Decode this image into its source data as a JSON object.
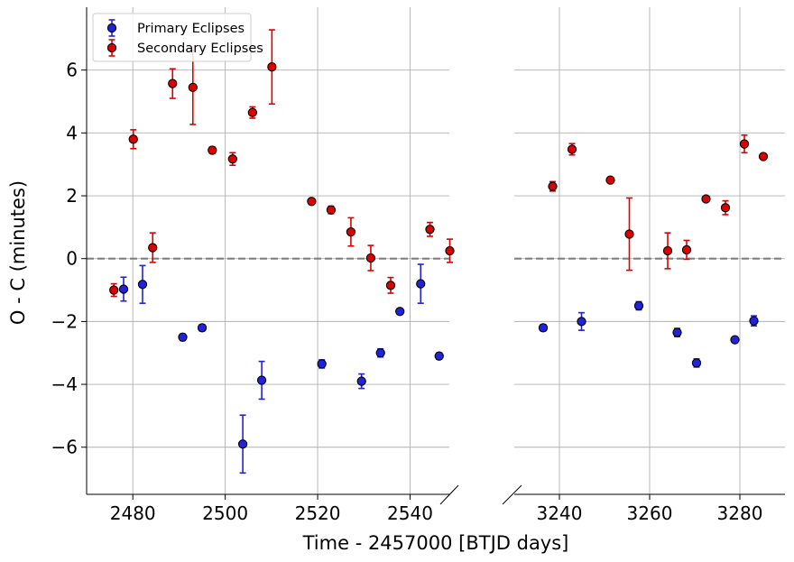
{
  "chart_data": {
    "type": "scatter",
    "title": "",
    "xlabel": "Time - 2457000 [BTJD days]",
    "ylabel": "O - C (minutes)",
    "grid": true,
    "legend_position": "top-left",
    "reference_line": {
      "y": 0,
      "style": "dashed",
      "color": "#808080"
    },
    "ylim": [
      -7.5,
      8.0
    ],
    "yticks": [
      -6,
      -4,
      -2,
      0,
      2,
      4,
      6
    ],
    "ytick_labels": [
      "−6",
      "−4",
      "−2",
      "0",
      "2",
      "4",
      "6"
    ],
    "panels": [
      {
        "name": "left",
        "xlim": [
          2470,
          2548.5
        ],
        "xticks": [
          2480,
          2500,
          2520,
          2540
        ],
        "xtick_labels": [
          "2480",
          "2500",
          "2520",
          "2540"
        ]
      },
      {
        "name": "right",
        "xlim": [
          3230,
          3290
        ],
        "xticks": [
          3240,
          3260,
          3280
        ],
        "xtick_labels": [
          "3240",
          "3260",
          "3280"
        ]
      }
    ],
    "series": [
      {
        "name": "Primary Eclipses",
        "color": "#2222dd",
        "points": [
          {
            "x": 2478.0,
            "y": -0.97,
            "err": 0.38
          },
          {
            "x": 2482.1,
            "y": -0.82,
            "err": 0.6
          },
          {
            "x": 2490.8,
            "y": -2.5,
            "err": 0.1
          },
          {
            "x": 2495.0,
            "y": -2.2,
            "err": 0.1
          },
          {
            "x": 2503.8,
            "y": -5.9,
            "err": 0.92
          },
          {
            "x": 2507.9,
            "y": -3.87,
            "err": 0.6
          },
          {
            "x": 2520.9,
            "y": -3.35,
            "err": 0.13
          },
          {
            "x": 2529.5,
            "y": -3.9,
            "err": 0.23
          },
          {
            "x": 2533.6,
            "y": -3.0,
            "err": 0.13
          },
          {
            "x": 2537.8,
            "y": -1.68,
            "err": 0.0
          },
          {
            "x": 2542.3,
            "y": -0.8,
            "err": 0.62
          },
          {
            "x": 2546.3,
            "y": -3.1,
            "err": 0.1
          },
          {
            "x": 3236.4,
            "y": -2.2,
            "err": 0.1
          },
          {
            "x": 3244.9,
            "y": -2.0,
            "err": 0.28
          },
          {
            "x": 3257.6,
            "y": -1.5,
            "err": 0.13
          },
          {
            "x": 3266.1,
            "y": -2.35,
            "err": 0.13
          },
          {
            "x": 3270.4,
            "y": -3.32,
            "err": 0.13
          },
          {
            "x": 3278.9,
            "y": -2.58,
            "err": 0.05
          },
          {
            "x": 3283.1,
            "y": -1.98,
            "err": 0.16
          }
        ]
      },
      {
        "name": "Secondary Eclipses",
        "color": "#dd0000",
        "points": [
          {
            "x": 2475.9,
            "y": -1.0,
            "err": 0.2
          },
          {
            "x": 2480.1,
            "y": 3.8,
            "err": 0.3
          },
          {
            "x": 2484.3,
            "y": 0.35,
            "err": 0.47
          },
          {
            "x": 2488.6,
            "y": 5.57,
            "err": 0.47
          },
          {
            "x": 2493.0,
            "y": 5.45,
            "err": 1.18
          },
          {
            "x": 2497.2,
            "y": 3.45,
            "err": 0.1
          },
          {
            "x": 2501.6,
            "y": 3.17,
            "err": 0.2
          },
          {
            "x": 2505.9,
            "y": 4.65,
            "err": 0.18
          },
          {
            "x": 2510.1,
            "y": 6.1,
            "err": 1.18
          },
          {
            "x": 2518.7,
            "y": 1.82,
            "err": 0.05
          },
          {
            "x": 2522.9,
            "y": 1.55,
            "err": 0.12
          },
          {
            "x": 2527.2,
            "y": 0.85,
            "err": 0.45
          },
          {
            "x": 2531.5,
            "y": 0.02,
            "err": 0.4
          },
          {
            "x": 2535.8,
            "y": -0.85,
            "err": 0.25
          },
          {
            "x": 2544.3,
            "y": 0.93,
            "err": 0.22
          },
          {
            "x": 2548.6,
            "y": 0.25,
            "err": 0.37
          },
          {
            "x": 3238.5,
            "y": 2.3,
            "err": 0.15
          },
          {
            "x": 3242.8,
            "y": 3.48,
            "err": 0.18
          },
          {
            "x": 3251.3,
            "y": 2.5,
            "err": 0.05
          },
          {
            "x": 3255.5,
            "y": 0.78,
            "err": 1.15
          },
          {
            "x": 3264.0,
            "y": 0.25,
            "err": 0.57
          },
          {
            "x": 3268.2,
            "y": 0.28,
            "err": 0.3
          },
          {
            "x": 3272.5,
            "y": 1.9,
            "err": 0.08
          },
          {
            "x": 3276.8,
            "y": 1.62,
            "err": 0.22
          },
          {
            "x": 3281.0,
            "y": 3.65,
            "err": 0.28
          },
          {
            "x": 3285.2,
            "y": 3.25,
            "err": 0.05
          }
        ]
      }
    ]
  }
}
